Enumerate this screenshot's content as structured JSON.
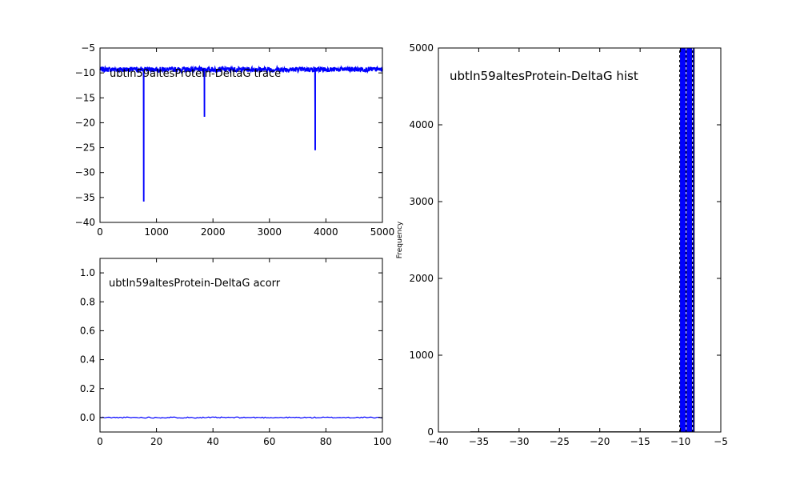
{
  "chart_data": [
    {
      "type": "line",
      "title": "ubtln59altesProtein-DeltaG trace",
      "xlabel": "",
      "ylabel": "",
      "xlim": [
        0,
        5000
      ],
      "ylim": [
        -40,
        -5
      ],
      "xticks": [
        "0",
        "1000",
        "2000",
        "3000",
        "4000",
        "5000"
      ],
      "yticks": [
        "−40",
        "−35",
        "−30",
        "−25",
        "−20",
        "−15",
        "−10",
        "−5"
      ],
      "baseline": -9.3,
      "noise": 0.5,
      "spikes": [
        {
          "x": 775,
          "y": -35.8
        },
        {
          "x": 1850,
          "y": -18.8
        },
        {
          "x": 3810,
          "y": -25.5
        }
      ],
      "series_color": "#0000ff"
    },
    {
      "type": "line",
      "title": "ubtln59altesProtein-DeltaG acorr",
      "xlabel": "",
      "ylabel": "",
      "xlim": [
        0,
        100
      ],
      "ylim": [
        -0.1,
        1.1
      ],
      "xticks": [
        "0",
        "20",
        "40",
        "60",
        "80",
        "100"
      ],
      "yticks": [
        "0.0",
        "0.2",
        "0.4",
        "0.6",
        "0.8",
        "1.0"
      ],
      "baseline": 0.0,
      "noise": 0.004,
      "series_color": "#0000ff"
    },
    {
      "type": "bar",
      "title": "ubtln59altesProtein-DeltaG hist",
      "xlabel": "",
      "ylabel": "Frequency",
      "xlim": [
        -40,
        -5
      ],
      "ylim": [
        0,
        5000
      ],
      "xticks": [
        "−40",
        "−35",
        "−30",
        "−25",
        "−20",
        "−15",
        "−10",
        "−5"
      ],
      "yticks": [
        "0",
        "1000",
        "2000",
        "3000",
        "4000",
        "5000"
      ],
      "bins": [
        {
          "x0": -36.0,
          "x1": -10.1,
          "count": 3
        },
        {
          "x0": -10.1,
          "x1": -9.3,
          "count": 5000
        },
        {
          "x0": -9.3,
          "x1": -8.5,
          "count": 5000
        },
        {
          "x0": -8.5,
          "x1": -8.3,
          "count": 5000
        }
      ],
      "bar_color": "#0000ff"
    }
  ]
}
